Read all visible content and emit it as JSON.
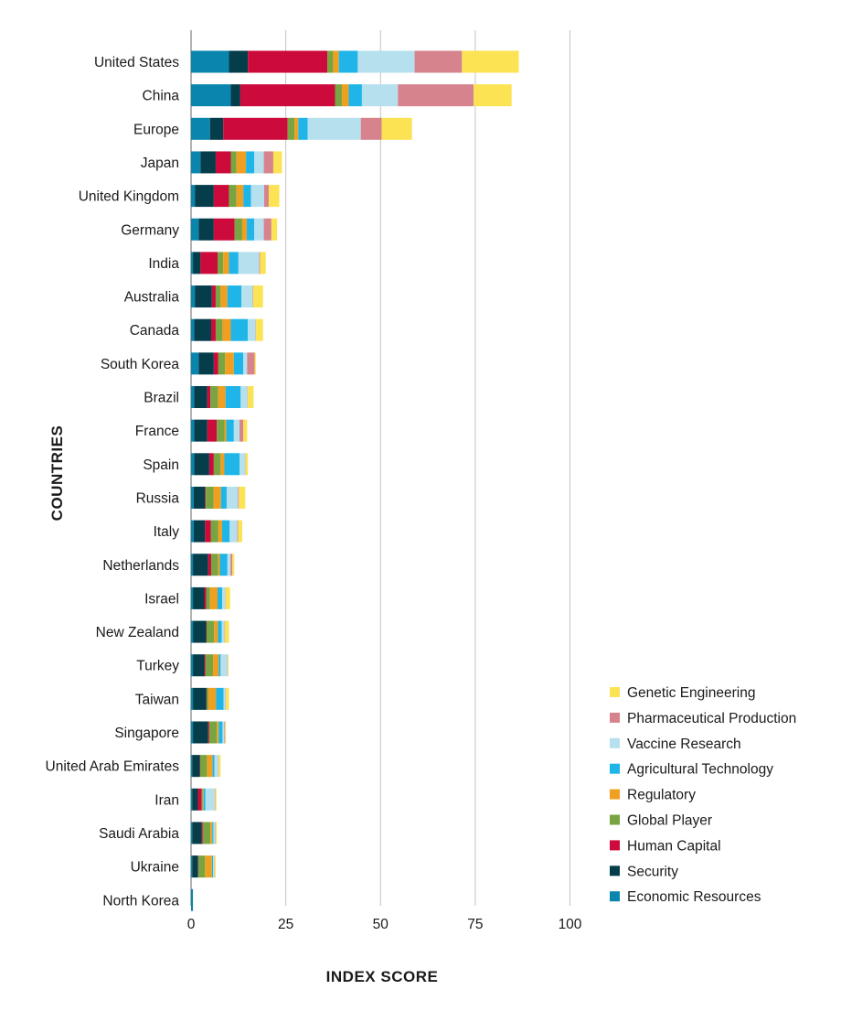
{
  "chart_data": {
    "type": "bar",
    "orientation": "horizontal",
    "stacked": true,
    "xlabel": "INDEX SCORE",
    "ylabel": "COUNTRIES",
    "xlim": [
      0,
      100
    ],
    "xticks": [
      0,
      25,
      50,
      75,
      100
    ],
    "grid": "vertical",
    "legend_position": "bottom-right",
    "categories": [
      "United States",
      "China",
      "Europe",
      "Japan",
      "United Kingdom",
      "Germany",
      "India",
      "Australia",
      "Canada",
      "South Korea",
      "Brazil",
      "France",
      "Spain",
      "Russia",
      "Italy",
      "Netherlands",
      "Israel",
      "New Zealand",
      "Turkey",
      "Taiwan",
      "Singapore",
      "United Arab Emirates",
      "Iran",
      "Saudi Arabia",
      "Ukraine",
      "North Korea"
    ],
    "series": [
      {
        "name": "Economic Resources",
        "color": "#0a85ad",
        "values": [
          10,
          10.5,
          5,
          2.5,
          1,
          2,
          0.5,
          1,
          0.8,
          2,
          0.8,
          0.8,
          0.8,
          0.7,
          0.7,
          0.5,
          0.5,
          0.5,
          0.5,
          0.5,
          0.5,
          0.3,
          0.3,
          0.3,
          0.3,
          0.5
        ]
      },
      {
        "name": "Security",
        "color": "#053d4b",
        "values": [
          5,
          2.5,
          3.5,
          4,
          5,
          4,
          2,
          4.5,
          4.5,
          4,
          3.5,
          3.5,
          4,
          3,
          3,
          4,
          3,
          3.5,
          3,
          3.5,
          4,
          2,
          1.5,
          2.5,
          1.5,
          0
        ]
      },
      {
        "name": "Human Capital",
        "color": "#cc0a3b",
        "values": [
          21,
          25,
          17,
          4,
          4,
          5.5,
          4.5,
          1,
          1.2,
          1.2,
          0.8,
          2.5,
          1.2,
          0.2,
          1.5,
          0.8,
          0.5,
          0.1,
          0.3,
          0.1,
          0.3,
          0.1,
          1,
          0.3,
          0.1,
          0
        ]
      },
      {
        "name": "Global Player",
        "color": "#78a542",
        "values": [
          1.5,
          1.8,
          1.8,
          1.5,
          2,
          2,
          1.5,
          1.3,
          1.8,
          1.8,
          2,
          2,
          1.8,
          2,
          2,
          1.8,
          1,
          2,
          2,
          0.5,
          2,
          1.8,
          0.3,
          2,
          1.8,
          0
        ]
      },
      {
        "name": "Regulatory",
        "color": "#f0a020",
        "values": [
          1.5,
          1.8,
          1,
          2.5,
          1.8,
          1.2,
          1.5,
          1.8,
          2.2,
          2.3,
          2,
          0.5,
          1,
          2,
          1,
          0.5,
          2,
          1,
          1.5,
          2,
          0.5,
          1.5,
          0.2,
          0.5,
          1.8,
          0
        ]
      },
      {
        "name": "Agricultural Technology",
        "color": "#1fb5e8",
        "values": [
          5,
          3.5,
          2.5,
          2.2,
          2,
          2,
          2.5,
          3.7,
          4.5,
          2.5,
          4,
          2,
          4,
          1.5,
          2,
          2,
          1.2,
          1,
          0.5,
          2,
          1,
          0.5,
          0.5,
          0.3,
          0.3,
          0
        ]
      },
      {
        "name": "Vaccine Research",
        "color": "#b6e0ee",
        "values": [
          15,
          9.5,
          14,
          2.5,
          3.5,
          2.5,
          5.5,
          3,
          2,
          1,
          1.8,
          1.5,
          1.5,
          3,
          2,
          0.8,
          0.8,
          0.7,
          1.8,
          0.5,
          0.5,
          1,
          2.5,
          0.5,
          0.3,
          0
        ]
      },
      {
        "name": "Pharmaceutical Production",
        "color": "#d6838e",
        "values": [
          12.5,
          20,
          5.5,
          2.5,
          1.2,
          2,
          0.2,
          0.1,
          0.1,
          2,
          0.1,
          1,
          0.1,
          0.2,
          0.2,
          0.5,
          0.1,
          0.1,
          0.1,
          0.1,
          0.2,
          0.1,
          0.1,
          0.1,
          0.1,
          0
        ]
      },
      {
        "name": "Genetic Engineering",
        "color": "#fbe354",
        "values": [
          15,
          10,
          8,
          2.3,
          2.8,
          1.5,
          1.5,
          2.6,
          1.9,
          0.3,
          1.5,
          1,
          0.6,
          1.7,
          1.1,
          0.5,
          1.2,
          1.1,
          0.2,
          0.8,
          0.2,
          0.5,
          0.3,
          0.3,
          0.3,
          0
        ]
      }
    ]
  }
}
